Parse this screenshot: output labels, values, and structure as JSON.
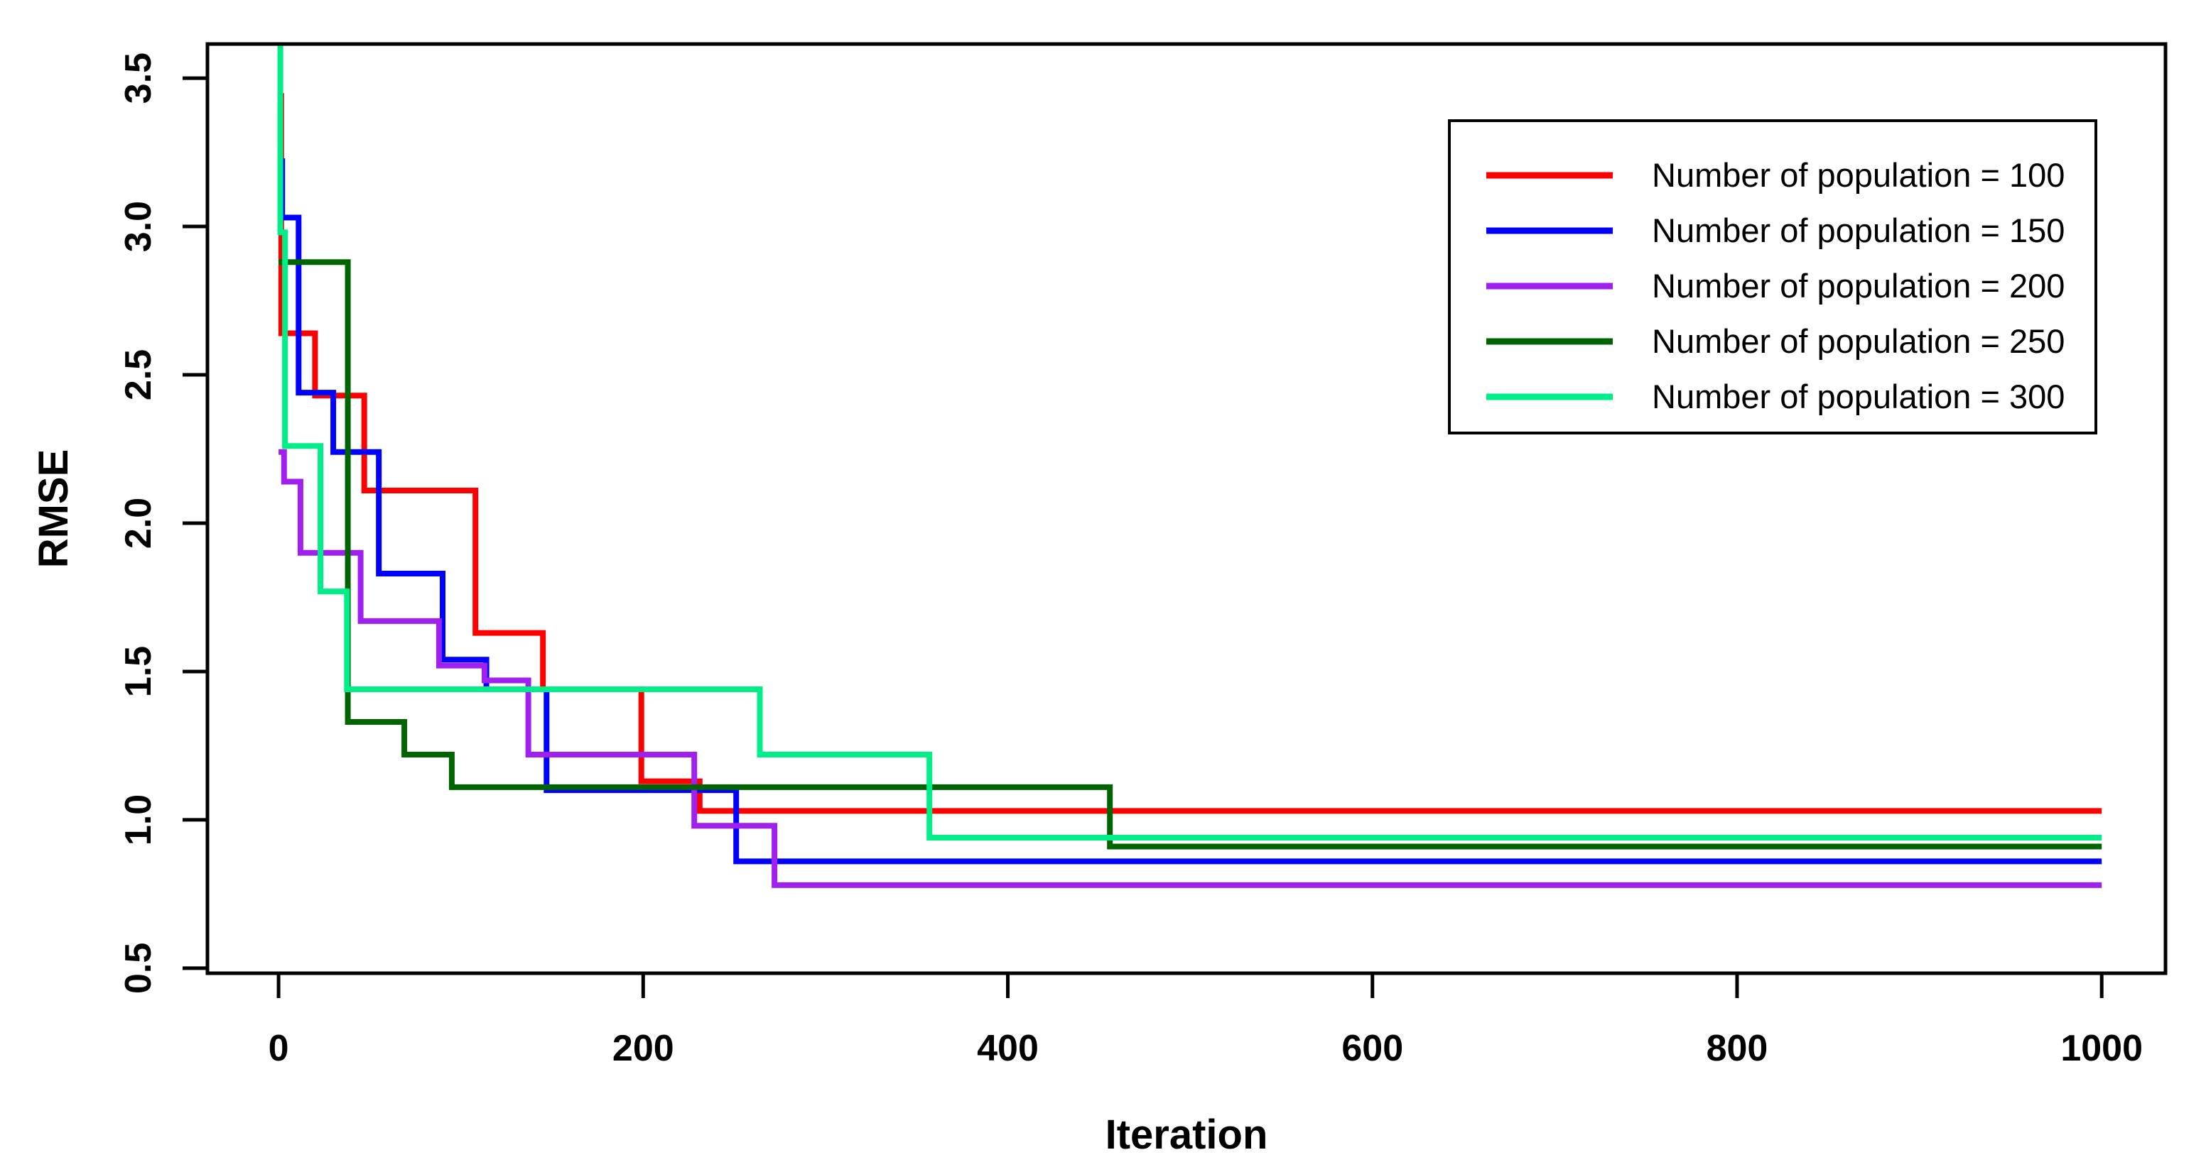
{
  "chart_data": {
    "type": "line",
    "step": true,
    "title": "",
    "xlabel": "Iteration",
    "ylabel": "RMSE",
    "xlim": [
      -39,
      1035
    ],
    "ylim": [
      0.483,
      3.615
    ],
    "grid": false,
    "background": "#ffffff",
    "axis_color": "#000000",
    "x_ticks": {
      "values": [
        0,
        200,
        400,
        600,
        800,
        1000
      ],
      "labels": [
        "0",
        "200",
        "400",
        "600",
        "800",
        "1000"
      ]
    },
    "y_ticks": {
      "values": [
        0.5,
        1.0,
        1.5,
        2.0,
        2.5,
        3.0,
        3.5
      ],
      "labels": [
        "0.5",
        "1.0",
        "1.5",
        "2.0",
        "2.5",
        "3.0",
        "3.5"
      ]
    },
    "legend": {
      "position": "top-right",
      "border": true,
      "border_color": "#000000"
    },
    "series": [
      {
        "name": "Number of population = 100",
        "color": "#ff0000",
        "final_value": 1.03,
        "points": [
          [
            0,
            3.44
          ],
          [
            1.5,
            3.44
          ],
          [
            1.5,
            2.64
          ],
          [
            20,
            2.64
          ],
          [
            20,
            2.43
          ],
          [
            47,
            2.43
          ],
          [
            47,
            2.11
          ],
          [
            108,
            2.11
          ],
          [
            108,
            1.63
          ],
          [
            145,
            1.63
          ],
          [
            145,
            1.44
          ],
          [
            199,
            1.44
          ],
          [
            199,
            1.13
          ],
          [
            231,
            1.13
          ],
          [
            231,
            1.03
          ],
          [
            1000,
            1.03
          ]
        ]
      },
      {
        "name": "Number of population = 150",
        "color": "#0000ff",
        "final_value": 0.86,
        "points": [
          [
            0,
            3.22
          ],
          [
            2,
            3.22
          ],
          [
            2,
            3.03
          ],
          [
            11,
            3.03
          ],
          [
            11,
            2.44
          ],
          [
            30,
            2.44
          ],
          [
            30,
            2.24
          ],
          [
            55,
            2.24
          ],
          [
            55,
            1.83
          ],
          [
            90,
            1.83
          ],
          [
            90,
            1.54
          ],
          [
            114,
            1.54
          ],
          [
            114,
            1.44
          ],
          [
            147,
            1.44
          ],
          [
            147,
            1.1
          ],
          [
            251,
            1.1
          ],
          [
            251,
            0.86
          ],
          [
            1000,
            0.86
          ]
        ]
      },
      {
        "name": "Number of population = 200",
        "color": "#a020f0",
        "final_value": 0.78,
        "points": [
          [
            0,
            2.24
          ],
          [
            3,
            2.24
          ],
          [
            3,
            2.14
          ],
          [
            12,
            2.14
          ],
          [
            12,
            1.9
          ],
          [
            45,
            1.9
          ],
          [
            45,
            1.67
          ],
          [
            88,
            1.67
          ],
          [
            88,
            1.52
          ],
          [
            113,
            1.52
          ],
          [
            113,
            1.47
          ],
          [
            137,
            1.47
          ],
          [
            137,
            1.22
          ],
          [
            228,
            1.22
          ],
          [
            228,
            0.98
          ],
          [
            272,
            0.98
          ],
          [
            272,
            0.78
          ],
          [
            1000,
            0.78
          ]
        ]
      },
      {
        "name": "Number of population = 250",
        "color": "#006400",
        "final_value": 0.91,
        "points": [
          [
            0,
            2.88
          ],
          [
            38,
            2.88
          ],
          [
            38,
            1.33
          ],
          [
            69,
            1.33
          ],
          [
            69,
            1.22
          ],
          [
            95,
            1.22
          ],
          [
            95,
            1.11
          ],
          [
            456,
            1.11
          ],
          [
            456,
            0.91
          ],
          [
            1000,
            0.91
          ]
        ]
      },
      {
        "name": "Number of population = 300",
        "color": "#00ee87",
        "final_value": 0.94,
        "points": [
          [
            1,
            3.66
          ],
          [
            1,
            2.98
          ],
          [
            3.5,
            2.98
          ],
          [
            3.5,
            2.26
          ],
          [
            23,
            2.26
          ],
          [
            23,
            1.77
          ],
          [
            37.5,
            1.77
          ],
          [
            37.5,
            1.44
          ],
          [
            264,
            1.44
          ],
          [
            264,
            1.22
          ],
          [
            357,
            1.22
          ],
          [
            357,
            0.94
          ],
          [
            1000,
            0.94
          ]
        ]
      }
    ]
  }
}
